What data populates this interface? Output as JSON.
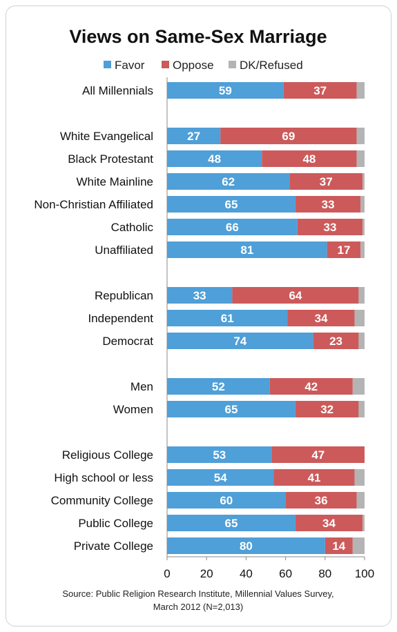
{
  "chart_data": {
    "type": "bar",
    "orientation": "horizontal",
    "stacked": true,
    "title": "Views on Same-Sex Marriage",
    "legend": [
      "Favor",
      "Oppose",
      "DK/Refused"
    ],
    "legend_position": "top",
    "colors": {
      "Favor": "#4f9fd8",
      "Oppose": "#cc5a5a",
      "DK/Refused": "#b4b4b4"
    },
    "xlim": [
      0,
      100
    ],
    "xticks": [
      "0",
      "20",
      "40",
      "60",
      "80",
      "100"
    ],
    "grid": false,
    "groups": [
      {
        "rows": [
          {
            "label": "All Millennials",
            "favor": 59,
            "oppose": 37,
            "dk": 4
          }
        ]
      },
      {
        "rows": [
          {
            "label": "White Evangelical",
            "favor": 27,
            "oppose": 69,
            "dk": 4
          },
          {
            "label": "Black Protestant",
            "favor": 48,
            "oppose": 48,
            "dk": 4
          },
          {
            "label": "White Mainline",
            "favor": 62,
            "oppose": 37,
            "dk": 1
          },
          {
            "label": "Non-Christian Affiliated",
            "favor": 65,
            "oppose": 33,
            "dk": 2
          },
          {
            "label": "Catholic",
            "favor": 66,
            "oppose": 33,
            "dk": 1
          },
          {
            "label": "Unaffiliated",
            "favor": 81,
            "oppose": 17,
            "dk": 2
          }
        ]
      },
      {
        "rows": [
          {
            "label": "Republican",
            "favor": 33,
            "oppose": 64,
            "dk": 3
          },
          {
            "label": "Independent",
            "favor": 61,
            "oppose": 34,
            "dk": 5
          },
          {
            "label": "Democrat",
            "favor": 74,
            "oppose": 23,
            "dk": 3
          }
        ]
      },
      {
        "rows": [
          {
            "label": "Men",
            "favor": 52,
            "oppose": 42,
            "dk": 6
          },
          {
            "label": "Women",
            "favor": 65,
            "oppose": 32,
            "dk": 3
          }
        ]
      },
      {
        "rows": [
          {
            "label": "Religious College",
            "favor": 53,
            "oppose": 47,
            "dk": 0
          },
          {
            "label": "High school or less",
            "favor": 54,
            "oppose": 41,
            "dk": 5
          },
          {
            "label": "Community College",
            "favor": 60,
            "oppose": 36,
            "dk": 4
          },
          {
            "label": "Public College",
            "favor": 65,
            "oppose": 34,
            "dk": 1
          },
          {
            "label": "Private College",
            "favor": 80,
            "oppose": 14,
            "dk": 6
          }
        ]
      }
    ]
  },
  "source": {
    "line1": "Source: Public Religion Research Institute, Millennial Values Survey,",
    "line2": "March 2012 (N=2,013)"
  }
}
